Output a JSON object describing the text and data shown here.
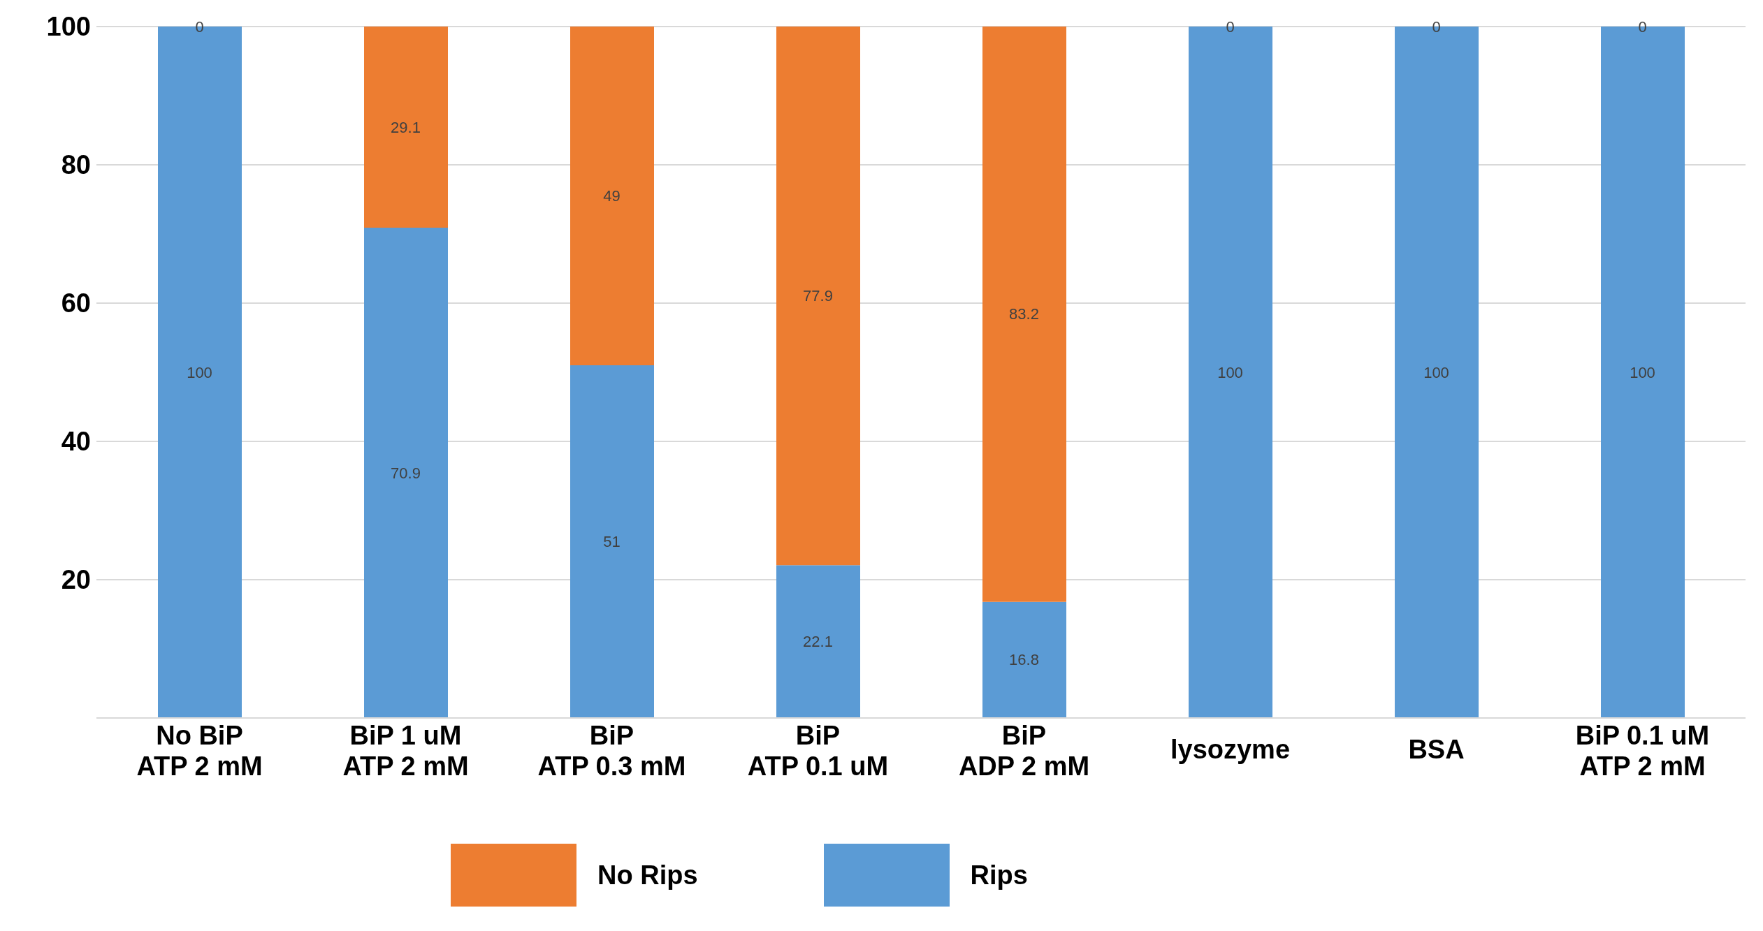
{
  "chart_data": {
    "type": "bar",
    "stacked": true,
    "categories": [
      "No BiP\nATP 2 mM",
      "BiP 1 uM\nATP 2 mM",
      "BiP\nATP 0.3 mM",
      "BiP\nATP 0.1 uM",
      "BiP\nADP 2 mM",
      "lysozyme",
      "BSA",
      "BiP 0.1 uM\nATP 2 mM"
    ],
    "series": [
      {
        "name": "Rips",
        "color": "#5b9bd5",
        "values": [
          100,
          70.9,
          51,
          22.1,
          16.8,
          100,
          100,
          100
        ]
      },
      {
        "name": "No Rips",
        "color": "#ed7d31",
        "values": [
          0,
          29.1,
          49,
          77.9,
          83.2,
          0,
          0,
          0
        ]
      }
    ],
    "ylim": [
      0,
      100
    ],
    "yticks": [
      {
        "value": 0,
        "label": null
      },
      20,
      40,
      60,
      80,
      100
    ],
    "grid": "y",
    "legend": "bottom",
    "data_labels": true
  }
}
